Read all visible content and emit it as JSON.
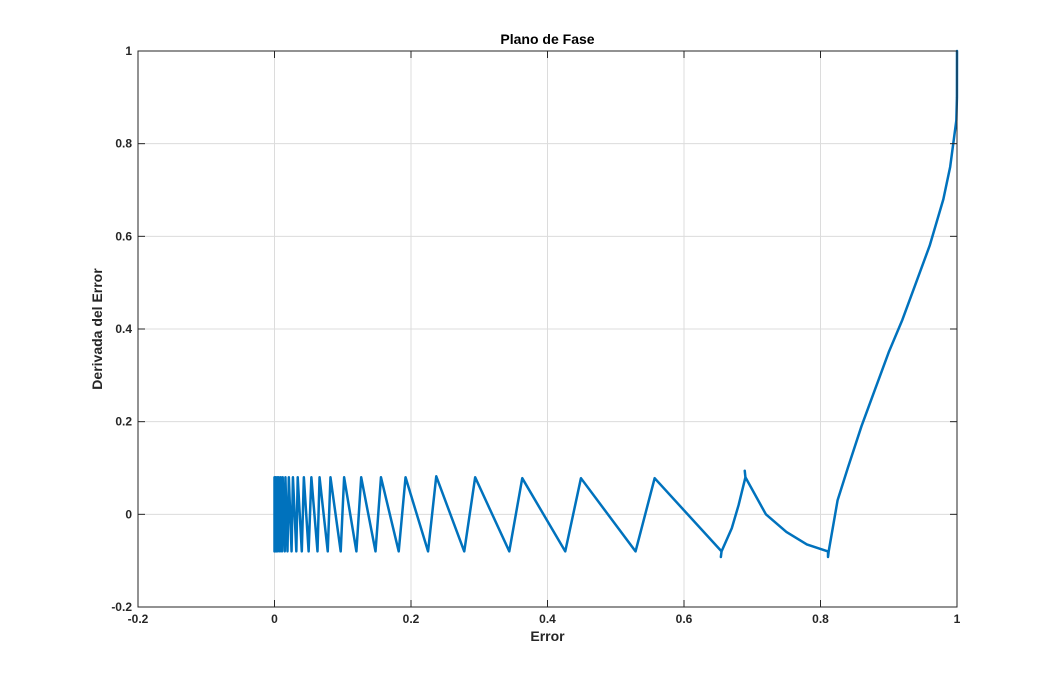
{
  "chart_data": {
    "type": "line",
    "title": "Plano de Fase",
    "xlabel": "Error",
    "ylabel": "Derivada del Error",
    "xlim": [
      -0.2,
      1
    ],
    "ylim": [
      -0.2,
      1
    ],
    "xticks": [
      -0.2,
      0,
      0.2,
      0.4,
      0.6,
      0.8,
      1
    ],
    "yticks": [
      -0.2,
      0,
      0.2,
      0.4,
      0.6,
      0.8,
      1
    ],
    "xtick_labels": [
      "-0.2",
      "0",
      "0.2",
      "0.4",
      "0.6",
      "0.8",
      "1"
    ],
    "ytick_labels": [
      "-0.2",
      "0",
      "0.2",
      "0.4",
      "0.6",
      "0.8",
      "1"
    ],
    "grid": true,
    "box": true,
    "colors": {
      "line": "#0072BD",
      "grid": "#dcdcdc",
      "axes": "#262626"
    },
    "series": [
      {
        "points": [
          [
            1.0,
            1.0
          ],
          [
            0.9999,
            0.9
          ],
          [
            0.999,
            0.85
          ],
          [
            0.99,
            0.75
          ],
          [
            0.98,
            0.68
          ],
          [
            0.96,
            0.58
          ],
          [
            0.94,
            0.5
          ],
          [
            0.92,
            0.42
          ],
          [
            0.9,
            0.35
          ],
          [
            0.88,
            0.27
          ],
          [
            0.86,
            0.19
          ],
          [
            0.84,
            0.1
          ],
          [
            0.825,
            0.03
          ],
          [
            0.812,
            -0.08
          ],
          [
            0.811,
            -0.092
          ],
          [
            0.811,
            -0.08
          ],
          [
            0.78,
            -0.065
          ],
          [
            0.75,
            -0.038
          ],
          [
            0.72,
            0.0
          ],
          [
            0.69,
            0.08
          ],
          [
            0.689,
            0.094
          ],
          [
            0.69,
            0.08
          ],
          [
            0.68,
            0.02
          ],
          [
            0.67,
            -0.03
          ],
          [
            0.655,
            -0.08
          ],
          [
            0.654,
            -0.092
          ],
          [
            0.655,
            -0.08
          ],
          [
            0.557,
            0.078
          ],
          [
            0.529,
            -0.08
          ],
          [
            0.449,
            0.078
          ],
          [
            0.426,
            -0.08
          ],
          [
            0.363,
            0.078
          ],
          [
            0.344,
            -0.08
          ],
          [
            0.294,
            0.08
          ],
          [
            0.278,
            -0.08
          ],
          [
            0.237,
            0.082
          ],
          [
            0.225,
            -0.08
          ],
          [
            0.192,
            0.08
          ],
          [
            0.182,
            -0.08
          ],
          [
            0.156,
            0.08
          ],
          [
            0.148,
            -0.08
          ],
          [
            0.127,
            0.08
          ],
          [
            0.12,
            -0.08
          ],
          [
            0.102,
            0.08
          ],
          [
            0.097,
            -0.08
          ],
          [
            0.082,
            0.08
          ],
          [
            0.078,
            -0.08
          ],
          [
            0.066,
            0.08
          ],
          [
            0.063,
            -0.08
          ],
          [
            0.054,
            0.08
          ],
          [
            0.05,
            -0.08
          ],
          [
            0.043,
            0.08
          ],
          [
            0.04,
            -0.08
          ],
          [
            0.034,
            0.08
          ],
          [
            0.032,
            -0.08
          ],
          [
            0.027,
            0.08
          ],
          [
            0.025,
            -0.08
          ],
          [
            0.021,
            0.08
          ],
          [
            0.019,
            -0.08
          ],
          [
            0.016,
            0.08
          ],
          [
            0.015,
            -0.08
          ],
          [
            0.012,
            0.08
          ],
          [
            0.011,
            -0.08
          ],
          [
            0.009,
            0.08
          ],
          [
            0.008,
            -0.08
          ],
          [
            0.006,
            0.08
          ],
          [
            0.005,
            -0.08
          ],
          [
            0.004,
            0.08
          ],
          [
            0.003,
            -0.08
          ],
          [
            0.002,
            0.08
          ],
          [
            0.0015,
            -0.08
          ],
          [
            0.001,
            0.08
          ],
          [
            0.0005,
            -0.08
          ],
          [
            0.0,
            0.08
          ],
          [
            0.0,
            -0.08
          ],
          [
            0.0,
            0.0
          ]
        ]
      }
    ]
  }
}
